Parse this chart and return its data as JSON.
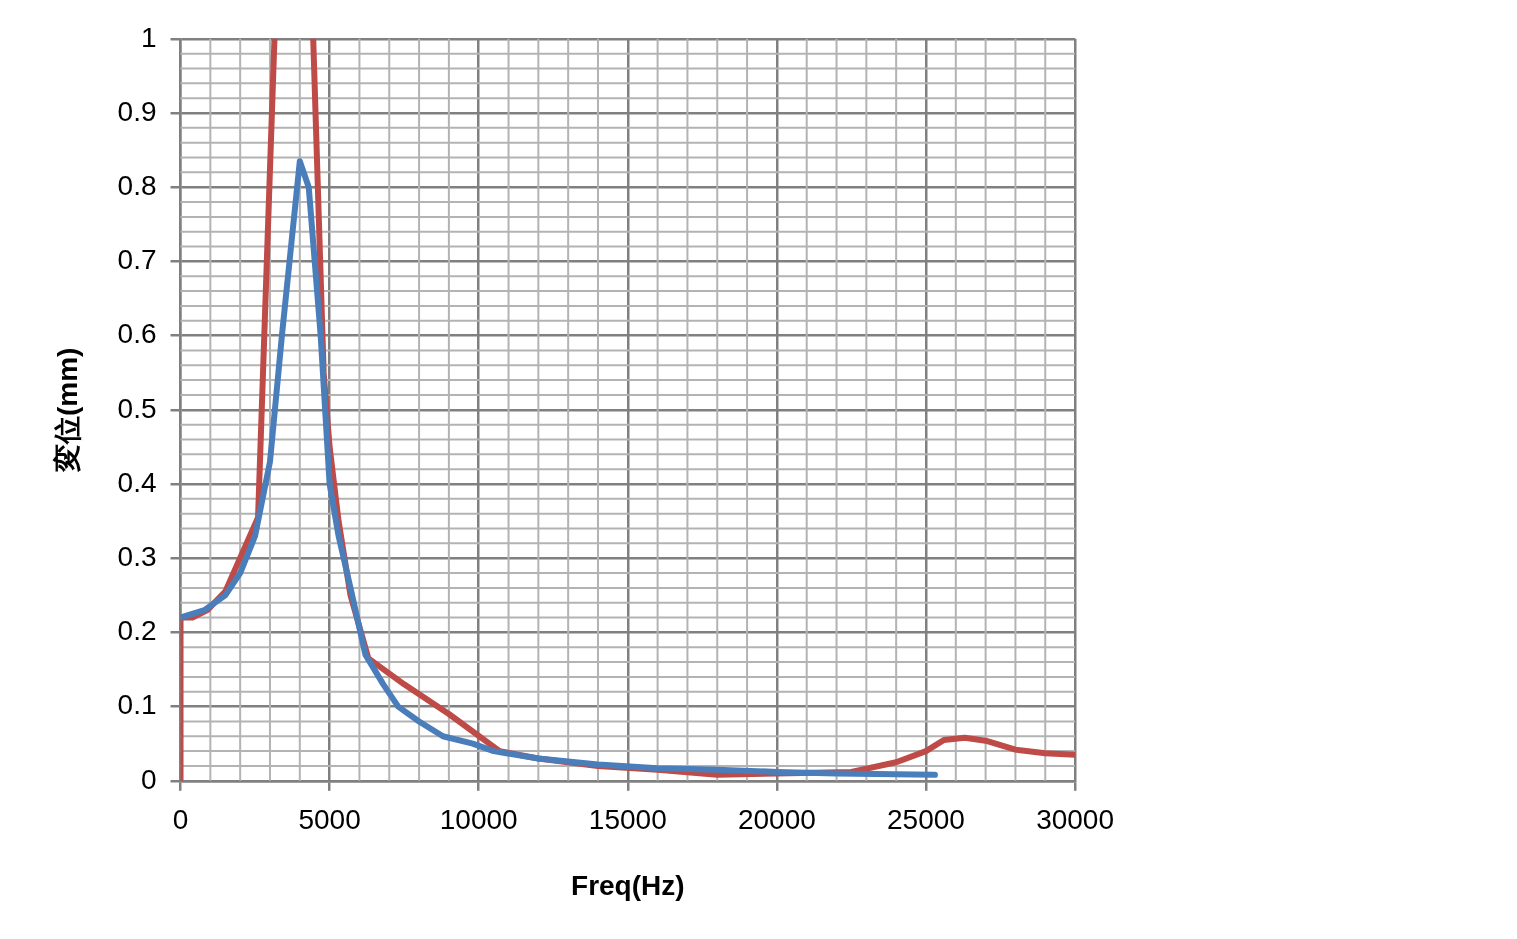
{
  "chart_data": {
    "type": "line",
    "xlabel": "Freq(Hz)",
    "ylabel": "変位(mm)",
    "xlim": [
      0,
      30000
    ],
    "xticks": [
      0,
      5000,
      10000,
      15000,
      20000,
      25000,
      30000
    ],
    "ylim": [
      0,
      1
    ],
    "yticks": [
      0,
      0.1,
      0.2,
      0.3,
      0.4,
      0.5,
      0.6,
      0.7,
      0.8,
      0.9,
      1
    ],
    "grid": true,
    "marker": "none",
    "series": [
      {
        "color": "#4a7ebb",
        "x": [
          0,
          800,
          1500,
          2000,
          2500,
          3000,
          3400,
          4000,
          4300,
          4700,
          5000,
          5300,
          5700,
          6200,
          6800,
          7300,
          8000,
          8800,
          9800,
          10500,
          12000,
          14000,
          16000,
          18000,
          20000,
          22000,
          25300
        ],
        "values": [
          0.22,
          0.23,
          0.25,
          0.28,
          0.33,
          0.43,
          0.6,
          0.835,
          0.8,
          0.6,
          0.4,
          0.33,
          0.26,
          0.17,
          0.13,
          0.1,
          0.08,
          0.06,
          0.05,
          0.04,
          0.03,
          0.022,
          0.017,
          0.015,
          0.012,
          0.01,
          0.008
        ]
      },
      {
        "color": "#be4b48",
        "x": [
          0,
          0,
          400,
          900,
          1500,
          2600,
          3150,
          3800,
          4450,
          4800,
          5000,
          5300,
          5700,
          6300,
          7500,
          9000,
          10700,
          12000,
          14000,
          16000,
          18000,
          20000,
          22500,
          24000,
          25000,
          25600,
          26300,
          27000,
          28000,
          29000,
          30000
        ],
        "values": [
          0,
          0.22,
          0.22,
          0.23,
          0.255,
          0.355,
          1,
          null,
          1,
          0.55,
          0.45,
          0.35,
          0.25,
          0.165,
          0.13,
          0.09,
          0.04,
          0.03,
          0.02,
          0.015,
          0.008,
          0.01,
          0.012,
          0.025,
          0.04,
          0.055,
          0.058,
          0.054,
          0.042,
          0.037,
          0.035
        ]
      }
    ]
  }
}
